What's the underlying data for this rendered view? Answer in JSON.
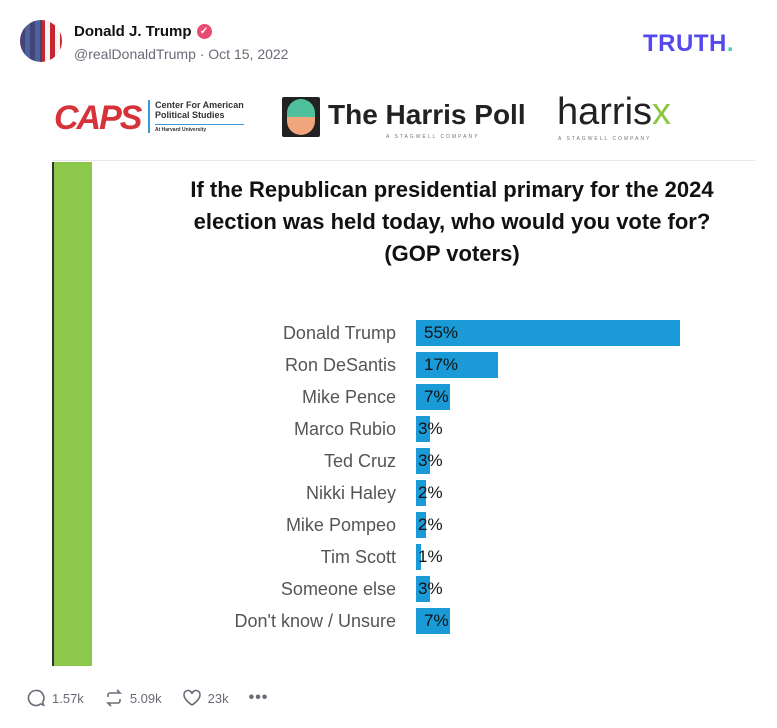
{
  "post": {
    "author": "Donald J. Trump",
    "handle_date": "@realDonaldTrump · Oct 15, 2022",
    "brand": "TRUTH",
    "brand_dot": ".",
    "verified_icon": "verified-badge-icon",
    "colors": {
      "brand": "#5448ee",
      "verified": "#e84a72",
      "bar": "#1a9ad6",
      "accent_green": "#8cc84b"
    }
  },
  "logos": {
    "caps": "CAPS",
    "caps_sub1": "Center For American",
    "caps_sub2": "Political Studies",
    "caps_sub3": "At Harvard University",
    "harris_poll": "The Harris Poll",
    "harris_poll_sub": "A STAGWELL COMPANY",
    "harrisx": "harris",
    "harrisx_x": "x",
    "harrisx_sub": "A STAGWELL COMPANY"
  },
  "chart_data": {
    "type": "bar",
    "orientation": "horizontal",
    "title": "If the Republican presidential primary for the 2024 election was held today, who would you vote for? (GOP voters)",
    "categories": [
      "Donald Trump",
      "Ron DeSantis",
      "Mike Pence",
      "Marco Rubio",
      "Ted Cruz",
      "Nikki Haley",
      "Mike Pompeo",
      "Tim Scott",
      "Someone else",
      "Don't know / Unsure"
    ],
    "values": [
      55,
      17,
      7,
      3,
      3,
      2,
      2,
      1,
      3,
      7
    ],
    "data_labels": [
      "55%",
      "17%",
      "7%",
      "3%",
      "3%",
      "2%",
      "2%",
      "1%",
      "3%",
      "7%"
    ],
    "unit": "%",
    "grid": false,
    "color": "#1a9ad6"
  },
  "actions": {
    "replies": "1.57k",
    "retruths": "5.09k",
    "likes": "23k"
  }
}
